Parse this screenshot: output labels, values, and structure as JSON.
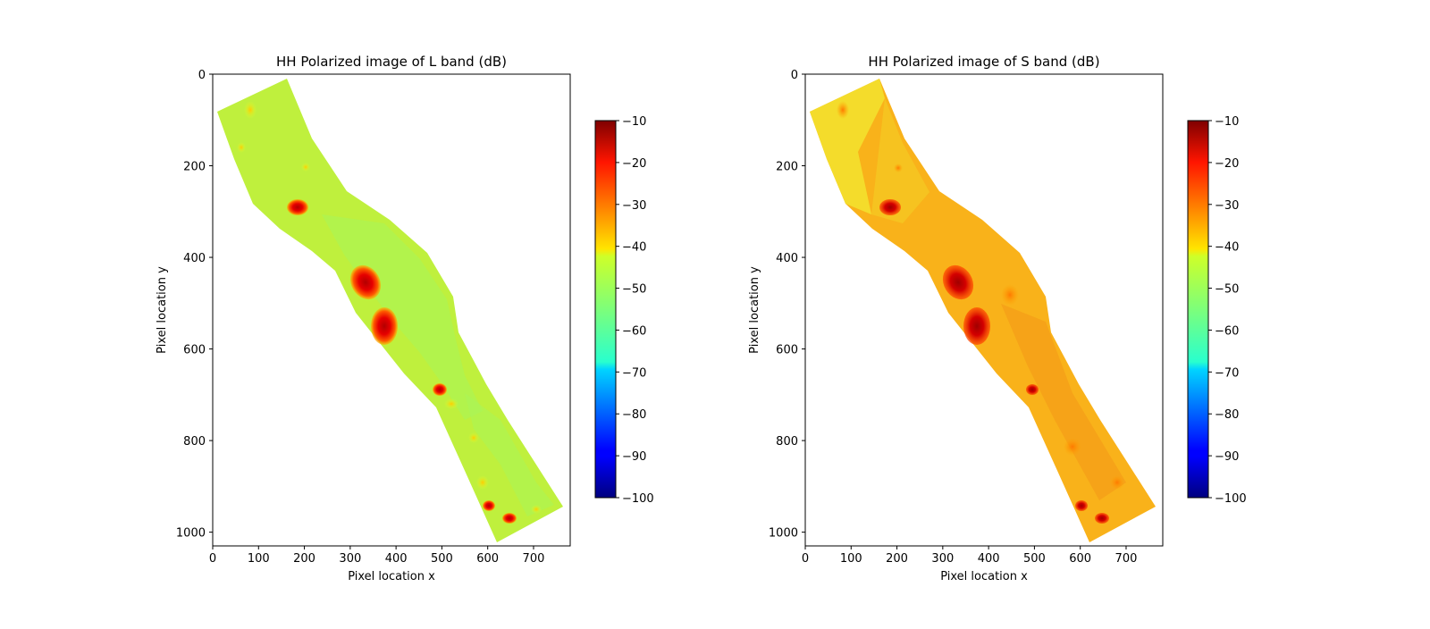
{
  "chart_data": [
    {
      "type": "heatmap",
      "title": "HH Polarized image of L band (dB)",
      "xlabel": "Pixel location x",
      "ylabel": "Pixel location y",
      "xlim": [
        0,
        780
      ],
      "ylim": [
        1030,
        0
      ],
      "x_ticks": [
        "0",
        "100",
        "200",
        "300",
        "400",
        "500",
        "600",
        "700"
      ],
      "y_ticks": [
        "0",
        "200",
        "400",
        "600",
        "800",
        "1000"
      ],
      "colormap": "jet",
      "colorbar": {
        "range": [
          -100,
          -10
        ],
        "ticks": [
          "−10",
          "−20",
          "−30",
          "−40",
          "−50",
          "−60",
          "−70",
          "−80",
          "−90",
          "−100"
        ]
      },
      "background_level_db": -45,
      "grid": false
    },
    {
      "type": "heatmap",
      "title": "HH Polarized image of S band (dB)",
      "xlabel": "Pixel location x",
      "ylabel": "Pixel location y",
      "xlim": [
        0,
        780
      ],
      "ylim": [
        1030,
        0
      ],
      "x_ticks": [
        "0",
        "100",
        "200",
        "300",
        "400",
        "500",
        "600",
        "700"
      ],
      "y_ticks": [
        "0",
        "200",
        "400",
        "600",
        "800",
        "1000"
      ],
      "colormap": "jet",
      "colorbar": {
        "range": [
          -100,
          -10
        ],
        "ticks": [
          "−10",
          "−20",
          "−30",
          "−40",
          "−50",
          "−60",
          "−70",
          "−80",
          "−90",
          "−100"
        ]
      },
      "background_level_db": -33,
      "grid": false
    }
  ],
  "colors": {
    "l_band_fill": "#bff03d",
    "s_band_fill": "#f9b21a",
    "feature_dark": "#b30000",
    "feature_mid": "#ff3300"
  }
}
